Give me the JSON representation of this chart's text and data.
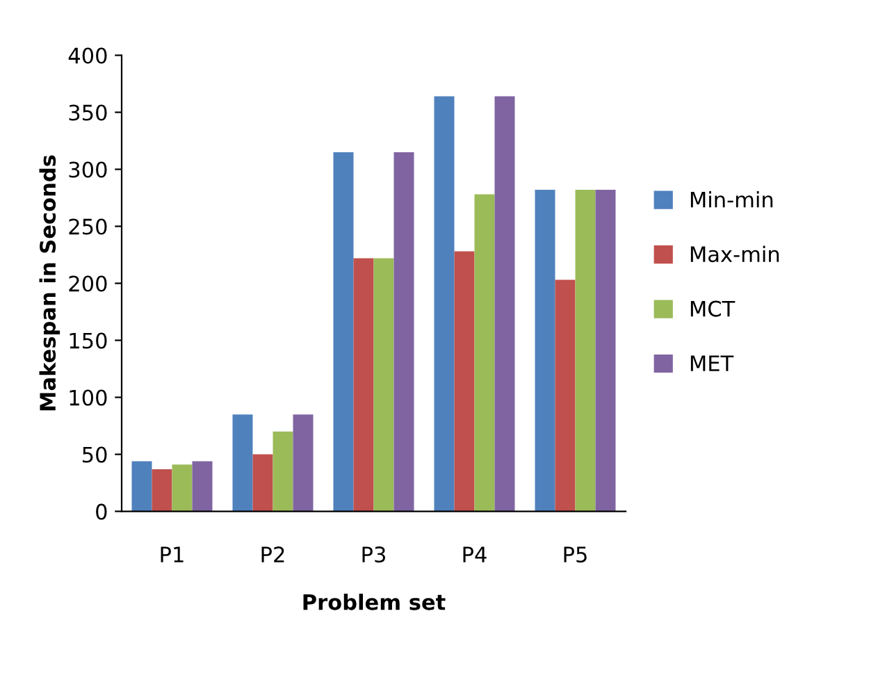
{
  "chart_data": {
    "type": "bar",
    "xlabel": "Problem set",
    "ylabel": "Makespan in Seconds",
    "categories": [
      "P1",
      "P2",
      "P3",
      "P4",
      "P5"
    ],
    "series": [
      {
        "name": "Min-min",
        "color": "#4f81bd",
        "values": [
          44,
          85,
          315,
          364,
          282
        ]
      },
      {
        "name": "Max-min",
        "color": "#c0504d",
        "values": [
          37,
          50,
          222,
          228,
          203
        ]
      },
      {
        "name": "MCT",
        "color": "#9bbb59",
        "values": [
          41,
          70,
          222,
          278,
          282
        ]
      },
      {
        "name": "MET",
        "color": "#8064a2",
        "values": [
          44,
          85,
          315,
          364,
          282
        ]
      }
    ],
    "ylim": [
      0,
      400
    ],
    "yticks": [
      0,
      50,
      100,
      150,
      200,
      250,
      300,
      350,
      400
    ],
    "grid": false,
    "legend": "right"
  }
}
